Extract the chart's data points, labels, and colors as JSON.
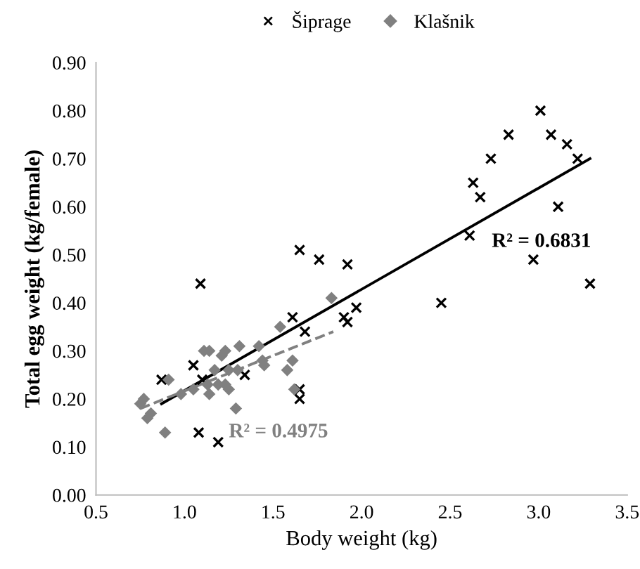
{
  "chart_data": {
    "type": "scatter",
    "xlabel": "Body weight (kg)",
    "ylabel": "Total egg weight (kg/female)",
    "xlim": [
      0.5,
      3.5
    ],
    "ylim": [
      0,
      0.9
    ],
    "xticks": [
      {
        "value": 0.5,
        "label": "0.5"
      },
      {
        "value": 1.0,
        "label": "1.0"
      },
      {
        "value": 1.5,
        "label": "1.5"
      },
      {
        "value": 2.0,
        "label": "2.0"
      },
      {
        "value": 2.5,
        "label": "2.5"
      },
      {
        "value": 3.0,
        "label": "3.0"
      },
      {
        "value": 3.5,
        "label": "3.5"
      }
    ],
    "yticks": [
      {
        "value": 0,
        "label": "0.00"
      },
      {
        "value": 0.1,
        "label": "0.10"
      },
      {
        "value": 0.2,
        "label": "0.20"
      },
      {
        "value": 0.3,
        "label": "0.30"
      },
      {
        "value": 0.4,
        "label": "0.40"
      },
      {
        "value": 0.5,
        "label": "0.50"
      },
      {
        "value": 0.6,
        "label": "0.60"
      },
      {
        "value": 0.7,
        "label": "0.70"
      },
      {
        "value": 0.8,
        "label": "0.80"
      },
      {
        "value": 0.9,
        "label": "0.90"
      }
    ],
    "grid": false,
    "legend": "top",
    "series": [
      {
        "name": "Šiprage",
        "color": "#000000",
        "marker": "cross",
        "x": [
          1.65,
          1.76,
          1.92,
          1.09,
          1.61,
          1.68,
          1.9,
          1.92,
          1.97,
          1.05,
          0.87,
          1.1,
          1.34,
          1.65,
          1.65,
          1.08,
          1.19,
          3.01,
          3.07,
          2.83,
          3.16,
          3.22,
          2.73,
          2.63,
          2.67,
          3.11,
          2.61,
          2.97,
          3.29,
          2.45
        ],
        "values": [
          0.51,
          0.49,
          0.48,
          0.44,
          0.37,
          0.34,
          0.37,
          0.36,
          0.39,
          0.27,
          0.24,
          0.24,
          0.25,
          0.22,
          0.2,
          0.13,
          0.11,
          0.8,
          0.75,
          0.75,
          0.73,
          0.7,
          0.7,
          0.65,
          0.62,
          0.6,
          0.54,
          0.49,
          0.44,
          0.4
        ]
      },
      {
        "name": "Klašnik",
        "color": "#808080",
        "marker": "diamond",
        "x": [
          0.77,
          0.75,
          0.81,
          0.79,
          0.91,
          0.89,
          0.98,
          1.05,
          1.11,
          1.14,
          1.21,
          1.23,
          1.31,
          1.14,
          1.13,
          1.19,
          1.23,
          1.25,
          1.17,
          1.25,
          1.3,
          1.29,
          1.42,
          1.44,
          1.45,
          1.54,
          1.61,
          1.58,
          1.62,
          1.83
        ],
        "values": [
          0.2,
          0.19,
          0.17,
          0.16,
          0.24,
          0.13,
          0.21,
          0.22,
          0.3,
          0.3,
          0.29,
          0.3,
          0.31,
          0.21,
          0.23,
          0.23,
          0.23,
          0.22,
          0.26,
          0.26,
          0.26,
          0.18,
          0.31,
          0.28,
          0.27,
          0.35,
          0.28,
          0.26,
          0.22,
          0.41
        ]
      },
      {
        "type": "line",
        "color": "#000000",
        "line_style": "solid",
        "x": [
          0.87,
          3.29
        ],
        "values": [
          0.19,
          0.7
        ]
      },
      {
        "type": "line",
        "color": "#808080",
        "line_style": "dashed",
        "x": [
          0.75,
          1.84
        ],
        "values": [
          0.18,
          0.34
        ]
      }
    ],
    "annotations": [
      "R² = 0.6831",
      "R² = 0.4975"
    ]
  }
}
